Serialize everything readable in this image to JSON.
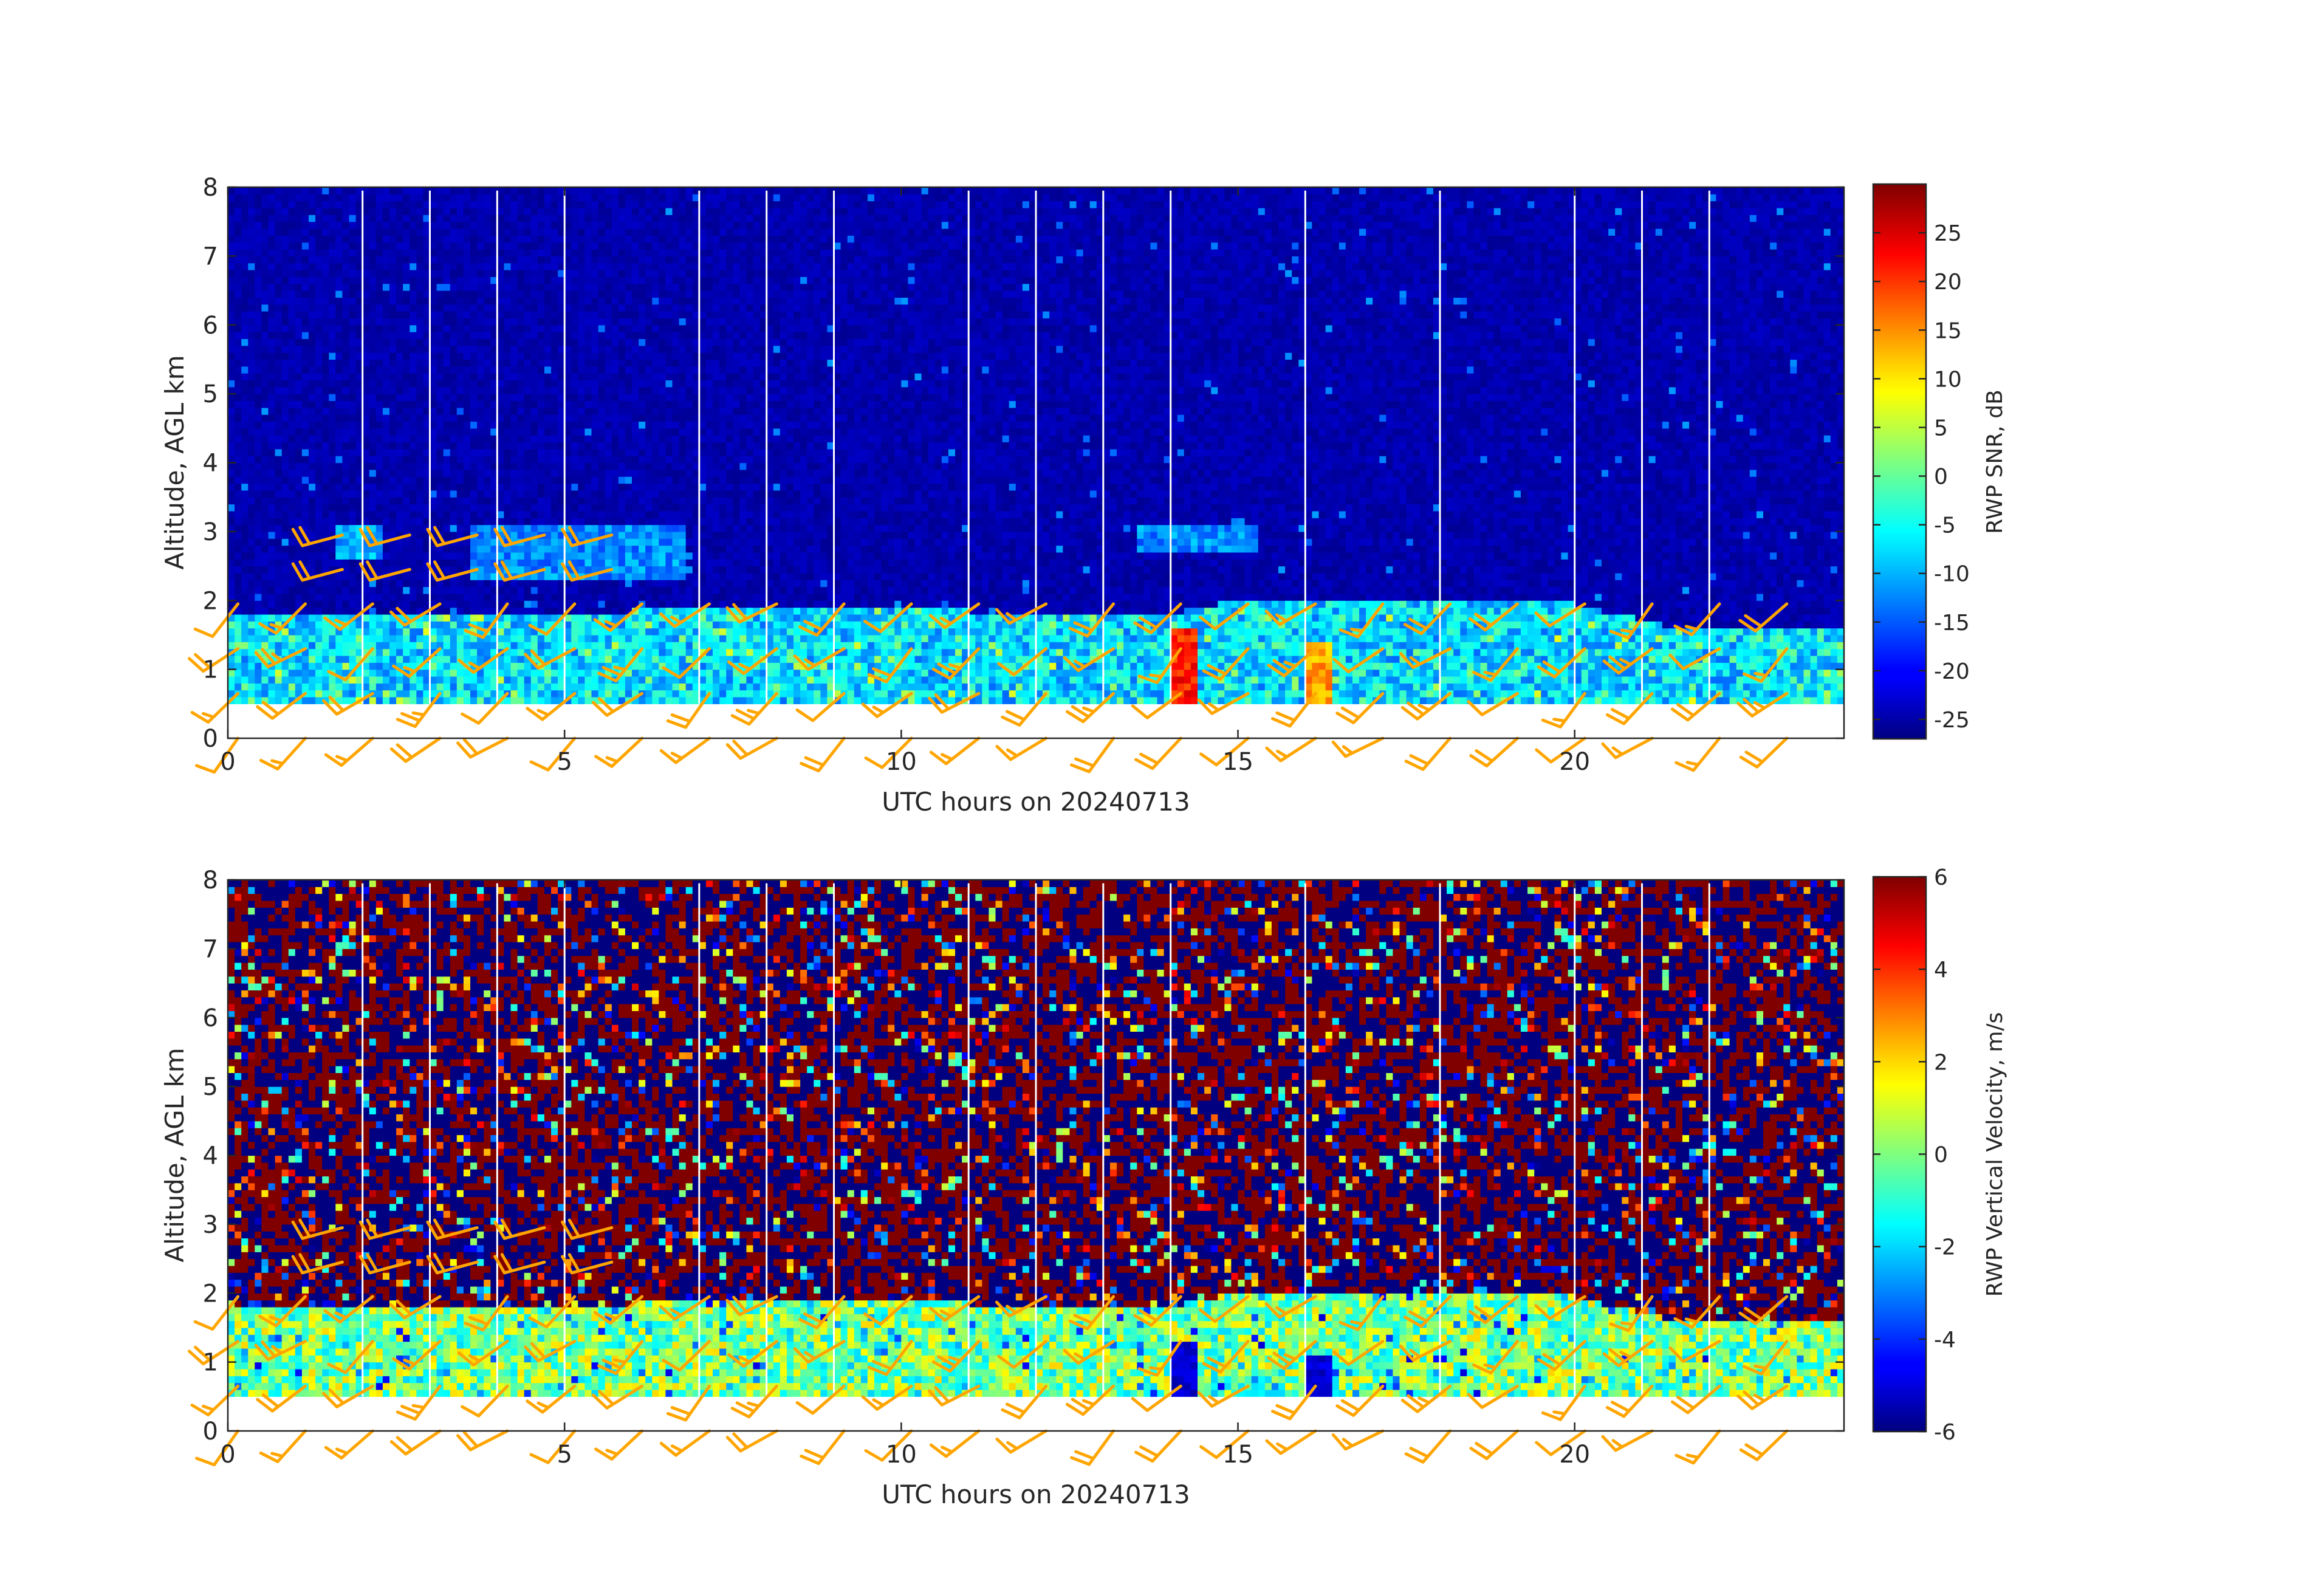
{
  "figure": {
    "background": "#ffffff"
  },
  "chart_data": [
    {
      "type": "heatmap",
      "variable": "snr",
      "title": "",
      "xlabel": "UTC hours on 20240713",
      "ylabel": "Altitude, AGL km",
      "xlim": [
        0,
        24
      ],
      "ylim": [
        0,
        8
      ],
      "xticks": [
        0,
        5,
        10,
        15,
        20
      ],
      "yticks": [
        0,
        1,
        2,
        3,
        4,
        5,
        6,
        7,
        8
      ],
      "colorbar": {
        "label": "RWP SNR, dB",
        "range": [
          -27,
          30
        ],
        "ticks": [
          -25,
          -20,
          -15,
          -10,
          -5,
          0,
          5,
          10,
          15,
          20,
          25
        ],
        "colormap": "jet"
      },
      "data_range_km": [
        0.5,
        7.95
      ],
      "boundary_layer_top_km": [
        [
          0,
          1.8
        ],
        [
          2,
          1.8
        ],
        [
          4,
          1.8
        ],
        [
          6,
          1.85
        ],
        [
          8,
          1.9
        ],
        [
          10,
          1.9
        ],
        [
          12,
          1.8
        ],
        [
          14,
          1.8
        ],
        [
          15,
          2.0
        ],
        [
          16,
          2.05
        ],
        [
          18,
          2.0
        ],
        [
          20,
          1.95
        ],
        [
          21.5,
          1.6
        ],
        [
          24,
          1.55
        ]
      ],
      "elevated_features": [
        {
          "x": [
            1.6,
            2.3
          ],
          "y": [
            2.65,
            3.05
          ],
          "snr_db": -10
        },
        {
          "x": [
            3.6,
            6.8
          ],
          "y": [
            2.3,
            3.1
          ],
          "snr_db": -12
        },
        {
          "x": [
            13.5,
            15.3
          ],
          "y": [
            2.7,
            3.1
          ],
          "snr_db": -12
        }
      ],
      "strong_echoes": [
        {
          "x": [
            14.0,
            14.4
          ],
          "y": [
            0.5,
            1.6
          ],
          "snr_db": 25
        },
        {
          "x": [
            16.0,
            16.4
          ],
          "y": [
            0.5,
            1.4
          ],
          "snr_db": 18
        }
      ],
      "missing_profile_hours": [
        2,
        3,
        4,
        5,
        7,
        8,
        9,
        11,
        12,
        13,
        14,
        16,
        18,
        20,
        21,
        22
      ]
    },
    {
      "type": "heatmap",
      "variable": "vertical_velocity",
      "title": "",
      "xlabel": "UTC hours on 20240713",
      "ylabel": "Altitude, AGL km",
      "xlim": [
        0,
        24
      ],
      "ylim": [
        0,
        8
      ],
      "xticks": [
        0,
        5,
        10,
        15,
        20
      ],
      "yticks": [
        0,
        1,
        2,
        3,
        4,
        5,
        6,
        7,
        8
      ],
      "colorbar": {
        "label": "RWP Vertical Velocity, m/s",
        "range": [
          -6,
          6
        ],
        "ticks": [
          -6,
          -4,
          -2,
          0,
          2,
          4,
          6
        ],
        "colormap": "jet"
      },
      "data_range_km": [
        0.5,
        7.95
      ],
      "boundary_layer_top_km": [
        [
          0,
          1.8
        ],
        [
          2,
          1.8
        ],
        [
          4,
          1.8
        ],
        [
          6,
          1.85
        ],
        [
          8,
          1.9
        ],
        [
          10,
          1.9
        ],
        [
          12,
          1.8
        ],
        [
          14,
          1.8
        ],
        [
          15,
          2.0
        ],
        [
          16,
          2.05
        ],
        [
          18,
          2.0
        ],
        [
          20,
          1.95
        ],
        [
          21.5,
          1.6
        ],
        [
          24,
          1.55
        ]
      ],
      "boundary_layer_velocity_m_s": 0.5,
      "downdrafts": [
        {
          "x": [
            14.0,
            14.4
          ],
          "y": [
            0.5,
            1.3
          ],
          "w_m_s": -5.5
        },
        {
          "x": [
            16.0,
            16.4
          ],
          "y": [
            0.5,
            1.1
          ],
          "w_m_s": -5.5
        }
      ],
      "missing_profile_hours": [
        2,
        3,
        4,
        5,
        7,
        8,
        9,
        11,
        12,
        13,
        14,
        16,
        18,
        20,
        21,
        22
      ]
    }
  ],
  "wind_barbs": {
    "color": "#ffa500",
    "levels_km": [
      0,
      0.65,
      1.3,
      1.95
    ],
    "profile_hours": [
      0,
      1,
      2,
      3,
      4,
      5,
      6,
      7,
      8,
      9,
      10,
      11,
      12,
      13,
      14,
      15,
      16,
      17,
      18,
      19,
      20,
      21,
      22,
      23
    ],
    "upper_flow": {
      "hours": [
        1.7,
        2.7,
        3.7,
        4.7,
        5.7
      ],
      "levels_km": [
        2.45,
        2.95
      ],
      "direction_deg": 255,
      "speed_kt": 20
    }
  }
}
